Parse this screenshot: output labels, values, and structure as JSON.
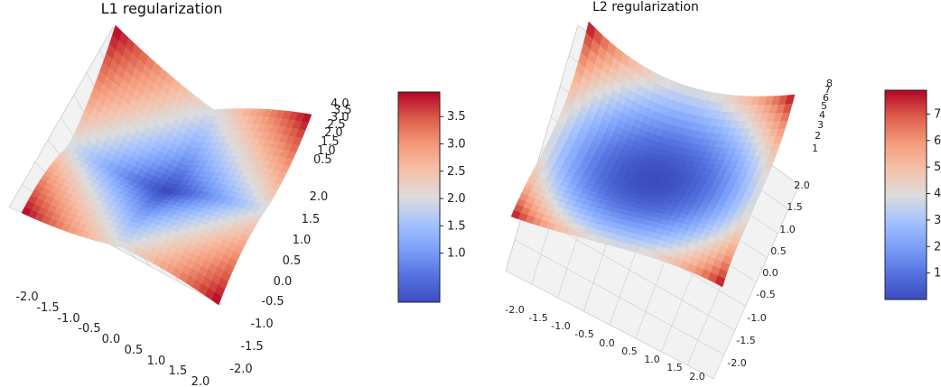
{
  "chart_data": [
    {
      "type": "surface3d",
      "title": "L1 regularization",
      "function": "|x| + |y|",
      "x_ticks": [
        "-2.0",
        "-1.5",
        "-1.0",
        "-0.5",
        "0.0",
        "0.5",
        "1.0",
        "1.5",
        "2.0"
      ],
      "y_ticks": [
        "-2.0",
        "-1.5",
        "-1.0",
        "-0.5",
        "0.0",
        "0.5",
        "1.0",
        "1.5",
        "2.0"
      ],
      "z_ticks": [
        "0.5",
        "1.0",
        "1.5",
        "2.0",
        "2.5",
        "3.0",
        "3.5",
        "4.0"
      ],
      "x_range": [
        -2,
        2
      ],
      "y_range": [
        -2,
        2
      ],
      "z_range": [
        0,
        4
      ],
      "colormap": "coolwarm",
      "colorbar": {
        "ticks": [
          "1.0",
          "1.5",
          "2.0",
          "2.5",
          "3.0",
          "3.5"
        ],
        "range": [
          0.1,
          3.95
        ]
      }
    },
    {
      "type": "surface3d",
      "title": "L2 regularization",
      "function": "x^2 + y^2",
      "x_ticks": [
        "-2.0",
        "-1.5",
        "-1.0",
        "-0.5",
        "0.0",
        "0.5",
        "1.0",
        "1.5",
        "2.0"
      ],
      "y_ticks": [
        "-2.0",
        "-1.5",
        "-1.0",
        "-0.5",
        "0.0",
        "0.5",
        "1.0",
        "1.5",
        "2.0"
      ],
      "z_ticks": [
        "1",
        "2",
        "3",
        "4",
        "5",
        "6",
        "7",
        "8"
      ],
      "x_range": [
        -2,
        2
      ],
      "y_range": [
        -2,
        2
      ],
      "z_range": [
        0,
        8
      ],
      "colormap": "coolwarm",
      "colorbar": {
        "ticks": [
          "1",
          "2",
          "3",
          "4",
          "5",
          "6",
          "7"
        ],
        "range": [
          0.0,
          7.9
        ]
      }
    }
  ],
  "colors": {
    "cmap_low": "#3b4cc0",
    "cmap_mid": "#dddddd",
    "cmap_high": "#b40426",
    "pane": "#f2f2f2",
    "grid": "#cccccc"
  }
}
